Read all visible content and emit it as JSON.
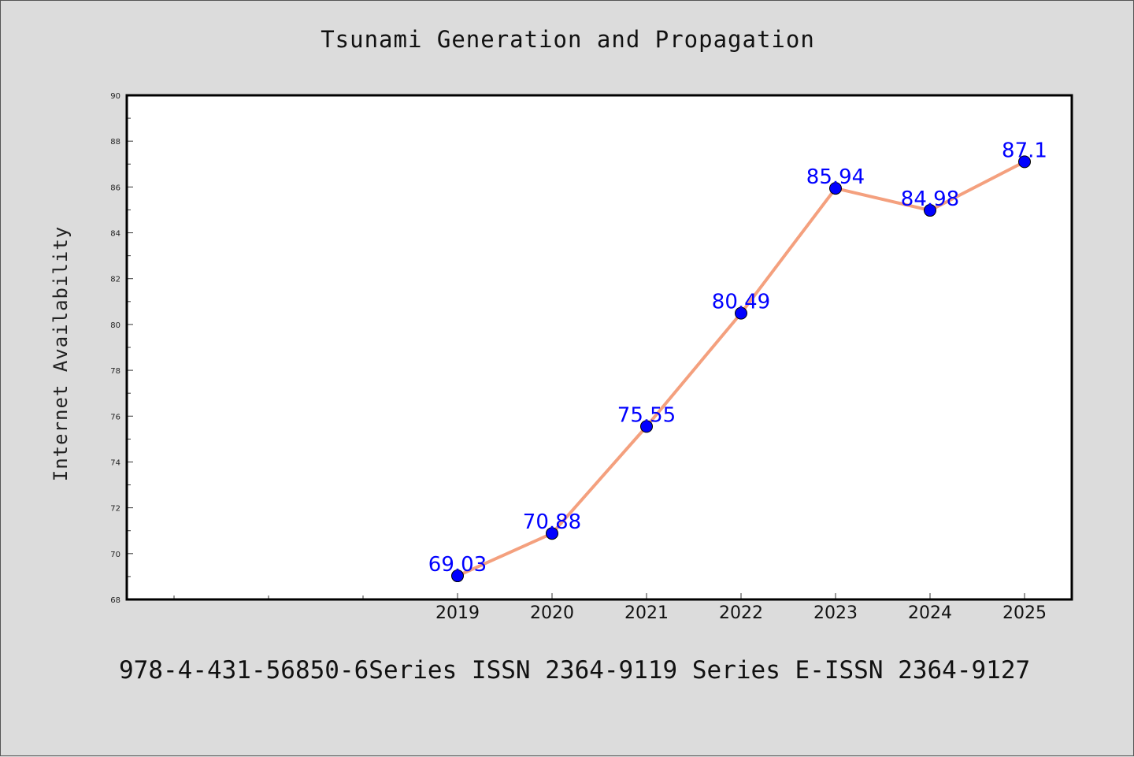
{
  "chart_data": {
    "type": "line",
    "title": "Tsunami Generation and Propagation",
    "xlabel": "",
    "ylabel": "Internet Availability",
    "categories": [
      "2019",
      "2020",
      "2021",
      "2022",
      "2023",
      "2024",
      "2025"
    ],
    "series": [
      {
        "values": [
          69.03,
          70.88,
          75.55,
          80.49,
          85.94,
          84.98,
          87.1
        ]
      }
    ],
    "data_labels": [
      "69.03",
      "70.88",
      "75.55",
      "80.49",
      "85.94",
      "84.98",
      "87.1"
    ],
    "ylim": [
      68,
      90
    ],
    "yticks": [
      68,
      70,
      72,
      74,
      76,
      78,
      80,
      82,
      84,
      86,
      88,
      90
    ],
    "grid": false,
    "legend": "none",
    "colors": {
      "line": "#f4a07e",
      "marker": "#0000ff",
      "label": "#0000ff",
      "frame": "#000000",
      "background": "#dcdcdc",
      "plot_bg": "#ffffff"
    }
  },
  "footer": {
    "text": "978-4-431-56850-6Series ISSN 2364-9119 Series E-ISSN 2364-9127"
  }
}
